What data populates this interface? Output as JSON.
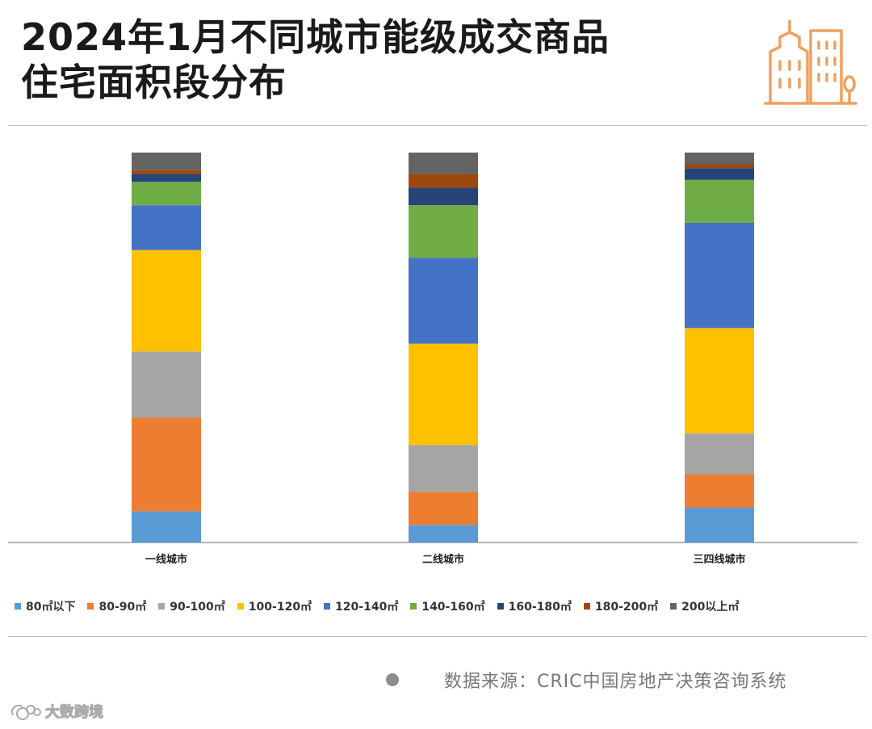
{
  "header": {
    "title_line1": "2024年1月不同城市能级成交商品",
    "title_line2": "住宅面积段分布"
  },
  "icons": {
    "logo": "city-buildings-icon",
    "footer_watermark": "weibo-logo-icon",
    "source_bullet": "dot-icon"
  },
  "chart_data": {
    "type": "bar",
    "stacked": true,
    "percent_stacked": true,
    "categories": [
      "一线城市",
      "二线城市",
      "三四线城市"
    ],
    "series": [
      {
        "name": "80㎡以下",
        "color": "#5B9BD5",
        "values": [
          8,
          4.5,
          9
        ]
      },
      {
        "name": "80-90㎡",
        "color": "#ED7D31",
        "values": [
          24,
          8.5,
          8.5
        ]
      },
      {
        "name": "90-100㎡",
        "color": "#A5A5A5",
        "values": [
          17,
          12,
          10.5
        ]
      },
      {
        "name": "100-120㎡",
        "color": "#FFC000",
        "values": [
          26,
          26,
          27
        ]
      },
      {
        "name": "120-140㎡",
        "color": "#4472C4",
        "values": [
          11.5,
          22,
          27
        ]
      },
      {
        "name": "140-160㎡",
        "color": "#70AD47",
        "values": [
          6,
          13.5,
          11
        ]
      },
      {
        "name": "160-180㎡",
        "color": "#264478",
        "values": [
          2,
          4.5,
          3
        ]
      },
      {
        "name": "180-200㎡",
        "color": "#9E480E",
        "values": [
          1,
          3.5,
          1
        ]
      },
      {
        "name": "200以上㎡",
        "color": "#636363",
        "values": [
          4.5,
          5.5,
          3
        ]
      }
    ],
    "legend_position": "bottom",
    "grid": false,
    "ylim": [
      0,
      100
    ]
  },
  "source": {
    "text": "数据来源：CRIC中国房地产决策咨询系统"
  },
  "watermark": {
    "text": "大数跨境"
  }
}
